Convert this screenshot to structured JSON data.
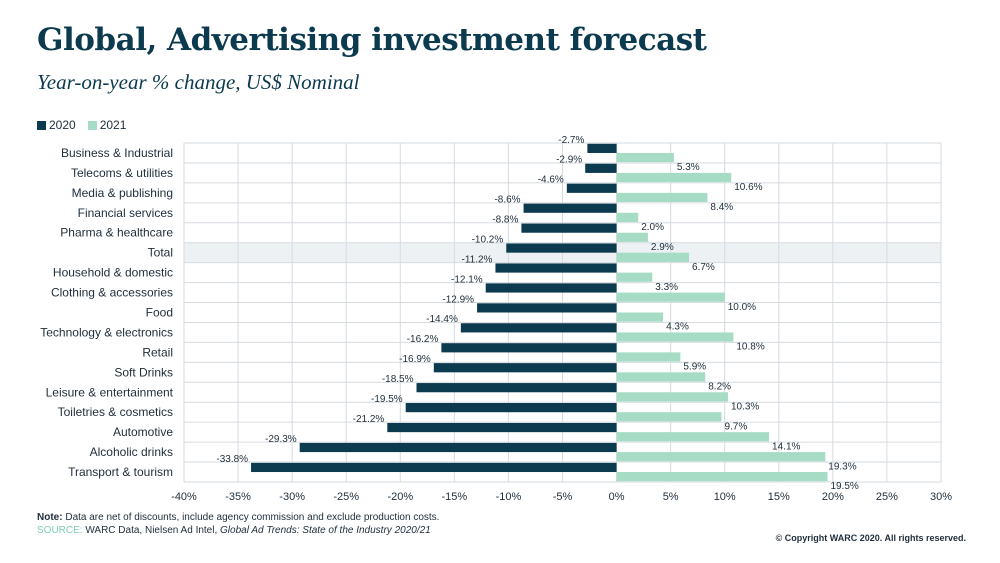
{
  "header": {
    "title": "Global, Advertising investment forecast",
    "subtitle": "Year-on-year % change, US$ Nominal"
  },
  "legend": {
    "items": [
      {
        "label": "2020",
        "color": "#0c3a4f"
      },
      {
        "label": "2021",
        "color": "#a6dcc5"
      }
    ]
  },
  "chart_data": {
    "type": "bar",
    "orientation": "horizontal",
    "categories": [
      "Business & Industrial",
      "Telecoms & utilities",
      "Media & publishing",
      "Financial services",
      "Pharma & healthcare",
      "Total",
      "Household & domestic",
      "Clothing & accessories",
      "Food",
      "Technology & electronics",
      "Retail",
      "Soft Drinks",
      "Leisure & entertainment",
      "Toiletries & cosmetics",
      "Automotive",
      "Alcoholic drinks",
      "Transport & tourism"
    ],
    "series": [
      {
        "name": "2020",
        "color": "#0c3a4f",
        "values": [
          -2.7,
          -2.9,
          -4.6,
          -8.6,
          -8.8,
          -10.2,
          -11.2,
          -12.1,
          -12.9,
          -14.4,
          -16.2,
          -16.9,
          -18.5,
          -19.5,
          -21.2,
          -29.3,
          -33.8
        ],
        "labels": [
          "-2.7%",
          "-2.9%",
          "-4.6%",
          "-8.6%",
          "-8.8%",
          "-10.2%",
          "-11.2%",
          "-12.1%",
          "-12.9%",
          "-14.4%",
          "-16.2%",
          "-16.9%",
          "-18.5%",
          "-19.5%",
          "-21.2%",
          "-29.3%",
          "-33.8%"
        ]
      },
      {
        "name": "2021",
        "color": "#a6dcc5",
        "values": [
          5.3,
          10.6,
          8.4,
          2.0,
          2.9,
          6.7,
          3.3,
          10.0,
          4.3,
          10.8,
          5.9,
          8.2,
          10.3,
          9.7,
          14.1,
          19.3,
          19.5
        ],
        "labels": [
          "5.3%",
          "10.6%",
          "8.4%",
          "2.0%",
          "2.9%",
          "6.7%",
          "3.3%",
          "10.0%",
          "4.3%",
          "10.8%",
          "5.9%",
          "8.2%",
          "10.3%",
          "9.7%",
          "14.1%",
          "19.3%",
          "19.5%"
        ]
      }
    ],
    "highlighted_category": "Total",
    "highlight_color": "#eef1f4",
    "xlim": [
      -40,
      30
    ],
    "xticks": [
      -40,
      -35,
      -30,
      -25,
      -20,
      -15,
      -10,
      -5,
      0,
      5,
      10,
      15,
      20,
      25,
      30
    ],
    "xtick_labels": [
      "-40%",
      "-35%",
      "-30%",
      "-25%",
      "-20%",
      "-15%",
      "-10%",
      "-5%",
      "0%",
      "5%",
      "10%",
      "15%",
      "20%",
      "25%",
      "30%"
    ],
    "grid": true,
    "legend_position": "top-left"
  },
  "footer": {
    "note_label": "Note:",
    "note_text": " Data are net of discounts, include agency commission and exclude production costs.",
    "source_label": "SOURCE:",
    "source_text": " WARC Data, Nielsen Ad Intel, ",
    "source_italic": "Global Ad Trends: State of the Industry 2020/21",
    "copyright": "© Copyright WARC 2020. All rights reserved."
  }
}
